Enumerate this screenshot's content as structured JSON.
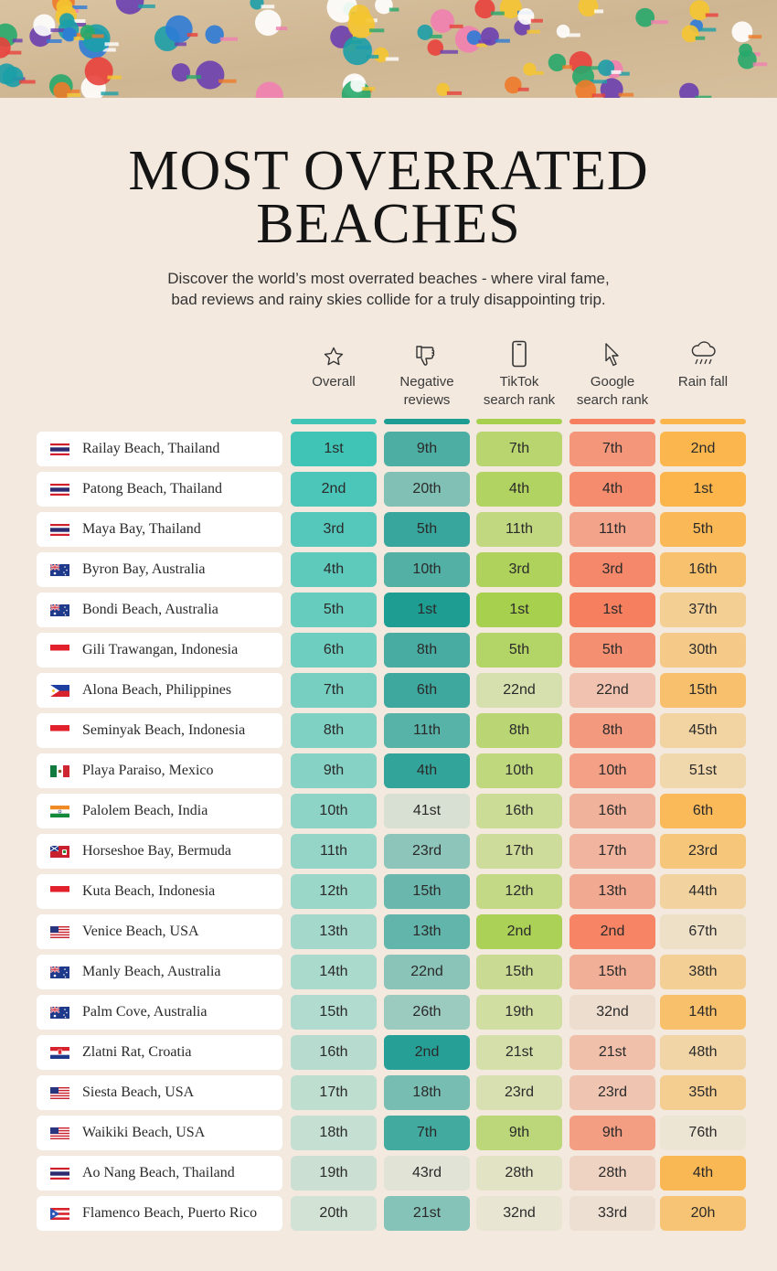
{
  "title_line1": "MOST OVERRATED",
  "title_line2": "BEACHES",
  "subtitle_line1": "Discover the world’s most overrated beaches - where viral fame,",
  "subtitle_line2": "bad reviews and rainy skies collide for a truly disappointing trip.",
  "columns": [
    {
      "key": "overall",
      "icon": "star-icon",
      "line1": "Overall",
      "line2": "",
      "color": "#3fc4b6"
    },
    {
      "key": "negative",
      "icon": "thumbs-down-icon",
      "line1": "Negative",
      "line2": "reviews",
      "color": "#1e9d93"
    },
    {
      "key": "tiktok",
      "icon": "phone-icon",
      "line1": "TikTok",
      "line2": "search rank",
      "color": "#a8d04f"
    },
    {
      "key": "google",
      "icon": "cursor-icon",
      "line1": "Google",
      "line2": "search rank",
      "color": "#f67f5f"
    },
    {
      "key": "rain",
      "icon": "rain-cloud-icon",
      "line1": "Rain fall",
      "line2": "",
      "color": "#fbb54b"
    }
  ],
  "rows": [
    {
      "flag": "thailand-flag-icon",
      "name": "Railay Beach, Thailand",
      "overall": "1st",
      "negative": "9th",
      "tiktok": "7th",
      "google": "7th",
      "rain": "2nd"
    },
    {
      "flag": "thailand-flag-icon",
      "name": "Patong Beach, Thailand",
      "overall": "2nd",
      "negative": "20th",
      "tiktok": "4th",
      "google": "4th",
      "rain": "1st"
    },
    {
      "flag": "thailand-flag-icon",
      "name": "Maya Bay, Thailand",
      "overall": "3rd",
      "negative": "5th",
      "tiktok": "11th",
      "google": "11th",
      "rain": "5th"
    },
    {
      "flag": "australia-flag-icon",
      "name": "Byron Bay, Australia",
      "overall": "4th",
      "negative": "10th",
      "tiktok": "3rd",
      "google": "3rd",
      "rain": "16th"
    },
    {
      "flag": "australia-flag-icon",
      "name": "Bondi Beach, Australia",
      "overall": "5th",
      "negative": "1st",
      "tiktok": "1st",
      "google": "1st",
      "rain": "37th"
    },
    {
      "flag": "indonesia-flag-icon",
      "name": "Gili Trawangan, Indonesia",
      "overall": "6th",
      "negative": "8th",
      "tiktok": "5th",
      "google": "5th",
      "rain": "30th"
    },
    {
      "flag": "philippines-flag-icon",
      "name": "Alona Beach, Philippines",
      "overall": "7th",
      "negative": "6th",
      "tiktok": "22nd",
      "google": "22nd",
      "rain": "15th"
    },
    {
      "flag": "indonesia-flag-icon",
      "name": "Seminyak Beach, Indonesia",
      "overall": "8th",
      "negative": "11th",
      "tiktok": "8th",
      "google": "8th",
      "rain": "45th"
    },
    {
      "flag": "mexico-flag-icon",
      "name": "Playa Paraiso, Mexico",
      "overall": "9th",
      "negative": "4th",
      "tiktok": "10th",
      "google": "10th",
      "rain": "51st"
    },
    {
      "flag": "india-flag-icon",
      "name": "Palolem Beach, India",
      "overall": "10th",
      "negative": "41st",
      "tiktok": "16th",
      "google": "16th",
      "rain": "6th"
    },
    {
      "flag": "bermuda-flag-icon",
      "name": "Horseshoe Bay, Bermuda",
      "overall": "11th",
      "negative": "23rd",
      "tiktok": "17th",
      "google": "17th",
      "rain": "23rd"
    },
    {
      "flag": "indonesia-flag-icon",
      "name": "Kuta Beach, Indonesia",
      "overall": "12th",
      "negative": "15th",
      "tiktok": "12th",
      "google": "13th",
      "rain": "44th"
    },
    {
      "flag": "usa-flag-icon",
      "name": "Venice Beach, USA",
      "overall": "13th",
      "negative": "13th",
      "tiktok": "2nd",
      "google": "2nd",
      "rain": "67th"
    },
    {
      "flag": "australia-flag-icon",
      "name": "Manly Beach, Australia",
      "overall": "14th",
      "negative": "22nd",
      "tiktok": "15th",
      "google": "15th",
      "rain": "38th"
    },
    {
      "flag": "australia-flag-icon",
      "name": "Palm Cove, Australia",
      "overall": "15th",
      "negative": "26th",
      "tiktok": "19th",
      "google": "32nd",
      "rain": "14th"
    },
    {
      "flag": "croatia-flag-icon",
      "name": "Zlatni Rat, Croatia",
      "overall": "16th",
      "negative": "2nd",
      "tiktok": "21st",
      "google": "21st",
      "rain": "48th"
    },
    {
      "flag": "usa-flag-icon",
      "name": "Siesta Beach, USA",
      "overall": "17th",
      "negative": "18th",
      "tiktok": "23rd",
      "google": "23rd",
      "rain": "35th"
    },
    {
      "flag": "usa-flag-icon",
      "name": "Waikiki Beach, USA",
      "overall": "18th",
      "negative": "7th",
      "tiktok": "9th",
      "google": "9th",
      "rain": "76th"
    },
    {
      "flag": "thailand-flag-icon",
      "name": "Ao Nang Beach, Thailand",
      "overall": "19th",
      "negative": "43rd",
      "tiktok": "28th",
      "google": "28th",
      "rain": "4th"
    },
    {
      "flag": "puerto-rico-flag-icon",
      "name": "Flamenco Beach, Puerto Rico",
      "overall": "20th",
      "negative": "21st",
      "tiktok": "32nd",
      "google": "33rd",
      "rain": "20h"
    }
  ]
}
